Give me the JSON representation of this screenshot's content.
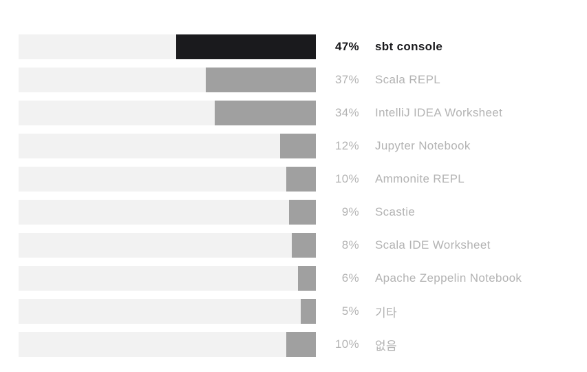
{
  "chart_data": {
    "type": "bar",
    "orientation": "horizontal",
    "anchor": "right",
    "unit": "%",
    "categories": [
      "sbt console",
      "Scala REPL",
      "IntelliJ IDEA Worksheet",
      "Jupyter Notebook",
      "Ammonite REPL",
      "Scastie",
      "Scala IDE Worksheet",
      "Apache Zeppelin Notebook",
      "기타",
      "없음"
    ],
    "values": [
      47,
      37,
      34,
      12,
      10,
      9,
      8,
      6,
      5,
      10
    ],
    "value_labels": [
      "47%",
      "37%",
      "34%",
      "12%",
      "10%",
      "9%",
      "8%",
      "6%",
      "5%",
      "10%"
    ],
    "highlighted_index": 0,
    "highlighted_category": "sbt console",
    "axis": {
      "min": 0,
      "max": 100
    },
    "grid": false,
    "legend": false,
    "colors": {
      "background": "#ffffff",
      "track": "#f2f2f2",
      "fill": "#a0a0a0",
      "highlight_fill": "#1a1a1d",
      "label_muted": "#b3b3b3",
      "label_highlight": "#19191c"
    }
  }
}
